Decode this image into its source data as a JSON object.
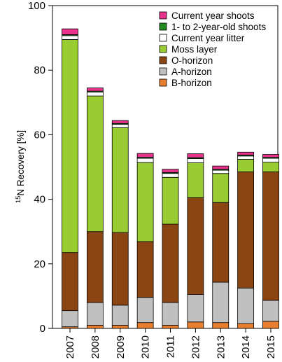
{
  "chart_data": {
    "type": "bar",
    "stacked": true,
    "ylabel_sup": "15",
    "ylabel_main": "N Recovery [%]",
    "ylim": [
      0,
      100
    ],
    "yticks": [
      "0",
      "20",
      "40",
      "60",
      "80",
      "100"
    ],
    "categories": [
      "2007",
      "2008",
      "2009",
      "2010",
      "2011",
      "2012",
      "2013",
      "2014",
      "2015"
    ],
    "series": [
      {
        "name": "B-horizon",
        "color": "#e87f2f",
        "values": [
          0.5,
          1.0,
          1.0,
          1.8,
          1.0,
          2.0,
          1.8,
          1.5,
          2.2
        ]
      },
      {
        "name": "A-horizon",
        "color": "#c0c0c0",
        "values": [
          5.0,
          7.0,
          6.2,
          7.8,
          7.0,
          8.5,
          12.5,
          11.0,
          6.5
        ]
      },
      {
        "name": "O-horizon",
        "color": "#8b4513",
        "values": [
          18.0,
          22.0,
          22.5,
          17.3,
          24.3,
          30.0,
          24.7,
          36.0,
          39.8
        ]
      },
      {
        "name": "Moss layer",
        "color": "#99cc33",
        "values": [
          66.0,
          42.0,
          32.5,
          24.5,
          14.5,
          10.8,
          9.0,
          3.9,
          3.0
        ]
      },
      {
        "name": "Current year litter",
        "color": "#ffffff",
        "values": [
          1.2,
          1.2,
          1.0,
          1.3,
          1.2,
          1.3,
          1.0,
          1.0,
          1.2
        ]
      },
      {
        "name": "1- to 2-year-old shoots",
        "color": "#228b22",
        "values": [
          0.3,
          0.3,
          0.3,
          0.3,
          0.3,
          0.3,
          0.3,
          0.3,
          0.3
        ]
      },
      {
        "name": "Current year shoots",
        "color": "#e8338c",
        "values": [
          1.8,
          1.0,
          0.9,
          1.2,
          1.0,
          1.2,
          1.0,
          0.9,
          0.9
        ]
      }
    ],
    "legend_order": [
      "Current year shoots",
      "1- to 2-year-old shoots",
      "Current year litter",
      "Moss layer",
      "O-horizon",
      "A-horizon",
      "B-horizon"
    ],
    "legend_position": "top-right",
    "grid": false
  }
}
